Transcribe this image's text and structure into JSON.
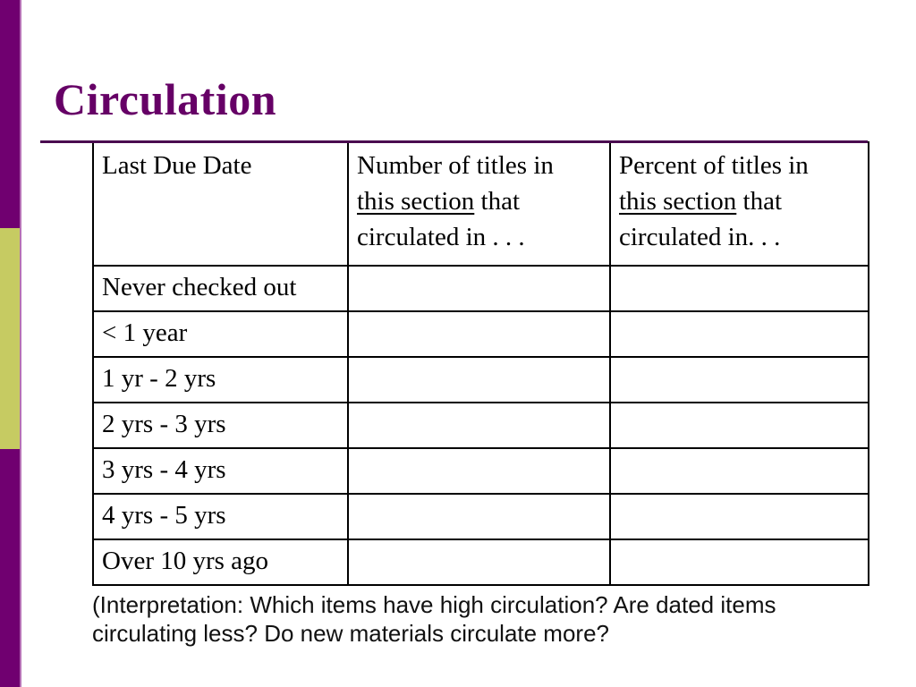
{
  "slide": {
    "title": "Circulation",
    "colors": {
      "sidebar_purple": "#700070",
      "sidebar_olive": "#c6cb62",
      "title_purple": "#660066",
      "rule_purple": "#4a0a50",
      "table_border": "#000000"
    },
    "table": {
      "header": {
        "col1": "Last Due Date",
        "col2": {
          "line1": "Number of titles in",
          "underlined": "this section",
          "line2_rest": " that",
          "line3": "circulated in . . ."
        },
        "col3": {
          "line1": "Percent of titles in",
          "underlined": "this section",
          "line2_rest": " that",
          "line3": "circulated in. . ."
        }
      },
      "rows": [
        {
          "label": "Never checked out",
          "number": "",
          "percent": ""
        },
        {
          "label": "< 1 year",
          "number": "",
          "percent": ""
        },
        {
          "label": "1 yr - 2 yrs",
          "number": "",
          "percent": ""
        },
        {
          "label": "2 yrs - 3 yrs",
          "number": "",
          "percent": ""
        },
        {
          "label": "3 yrs - 4 yrs",
          "number": "",
          "percent": ""
        },
        {
          "label": "4 yrs - 5 yrs",
          "number": "",
          "percent": ""
        },
        {
          "label": "Over 10 yrs ago",
          "number": "",
          "percent": ""
        }
      ]
    },
    "interpretation": {
      "line1": "(Interpretation: Which items have high circulation? Are dated items",
      "line2": "circulating less? Do new materials circulate more?"
    }
  }
}
